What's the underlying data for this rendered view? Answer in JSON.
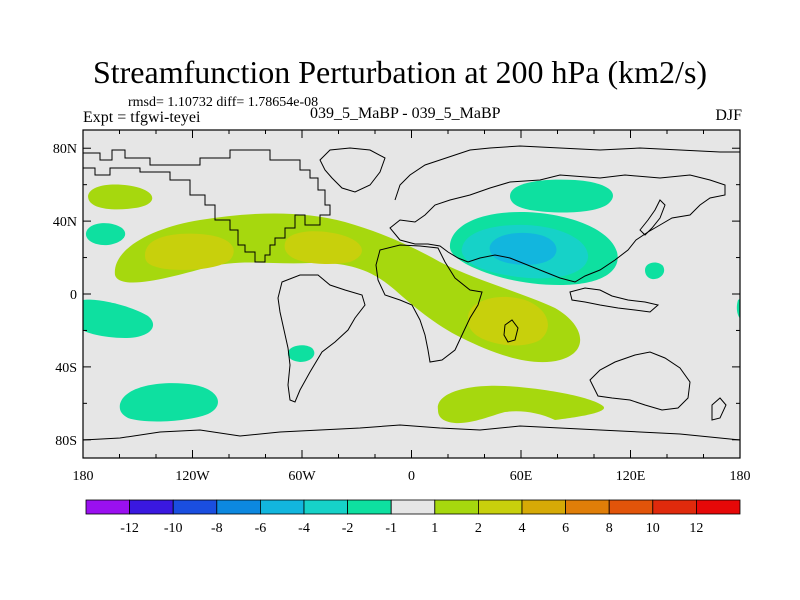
{
  "chart_data": {
    "type": "heatmap",
    "title": "Streamfunction Perturbation at 200 hPa (km2/s)",
    "stats_line": "rmsd= 1.10732 diff= 1.78654e-08",
    "experiment_label": "Expt = tfgwi-teyei",
    "center_label": "039_5_MaBP - 039_5_MaBP",
    "season_label": "DJF",
    "xlabel": "",
    "ylabel": "",
    "x_range": [
      -180,
      180
    ],
    "y_range": [
      -90,
      90
    ],
    "x_ticks": [
      {
        "value": -180,
        "label": "180"
      },
      {
        "value": -120,
        "label": "120W"
      },
      {
        "value": -60,
        "label": "60W"
      },
      {
        "value": 0,
        "label": "0"
      },
      {
        "value": 60,
        "label": "60E"
      },
      {
        "value": 120,
        "label": "120E"
      },
      {
        "value": 180,
        "label": "180"
      }
    ],
    "y_ticks": [
      {
        "value": 80,
        "label": "80N"
      },
      {
        "value": 40,
        "label": "40N"
      },
      {
        "value": 0,
        "label": "0"
      },
      {
        "value": -40,
        "label": "40S"
      },
      {
        "value": -80,
        "label": "80S"
      }
    ],
    "colorbar": {
      "boundaries": [
        "-12",
        "-10",
        "-8",
        "-6",
        "-4",
        "-2",
        "-1",
        "1",
        "2",
        "4",
        "6",
        "8",
        "10",
        "12"
      ],
      "colors": [
        "#9a10f0",
        "#3a18e0",
        "#1a4ee0",
        "#0c88e0",
        "#12b6de",
        "#16d2c8",
        "#0ee0a0",
        "#e6e6e6",
        "#a6d80e",
        "#c8d00c",
        "#d6aa06",
        "#e07e08",
        "#e2540a",
        "#e02a0c",
        "#e60808"
      ]
    },
    "anomaly_regions": [
      {
        "name": "north-pacific-positive",
        "lon": -166,
        "lat": 52,
        "value": 1.5
      },
      {
        "name": "pacific-equatorial-negative",
        "lon": -175,
        "lat": 35,
        "value": -1.5
      },
      {
        "name": "atlantic-wave-positive",
        "lon": -90,
        "lat": 28,
        "value": 2.5
      },
      {
        "name": "atlantic-wave-max-west",
        "lon": -130,
        "lat": 23,
        "value": 3
      },
      {
        "name": "atlantic-wave-max-east",
        "lon": -55,
        "lat": 26,
        "value": 3
      },
      {
        "name": "indian-ocean-positive",
        "lon": 60,
        "lat": -13,
        "value": 3
      },
      {
        "name": "asia-negative",
        "lon": 58,
        "lat": 26,
        "value": -4
      },
      {
        "name": "asia-north-negative",
        "lon": 57,
        "lat": 55,
        "value": -1.5
      },
      {
        "name": "eastern-pacific-negative",
        "lon": -178,
        "lat": -12,
        "value": -1.5
      },
      {
        "name": "south-america-negative",
        "lon": -60,
        "lat": -30,
        "value": -1.5
      },
      {
        "name": "south-pacific-negative",
        "lon": -130,
        "lat": -57,
        "value": -1.5
      },
      {
        "name": "southern-ocean-positive",
        "lon": 60,
        "lat": -58,
        "value": 2
      },
      {
        "name": "west-pacific-negative",
        "lon": 133,
        "lat": 13,
        "value": -1.5
      }
    ]
  }
}
